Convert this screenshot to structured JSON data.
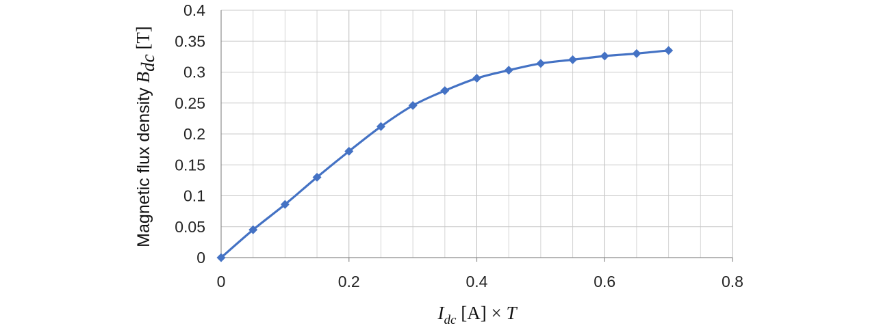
{
  "chart_data": {
    "type": "line",
    "x": [
      0,
      0.05,
      0.1,
      0.15,
      0.2,
      0.25,
      0.3,
      0.35,
      0.4,
      0.45,
      0.5,
      0.55,
      0.6,
      0.65,
      0.7
    ],
    "series": [
      {
        "values": [
          0,
          0.045,
          0.086,
          0.13,
          0.172,
          0.212,
          0.246,
          0.27,
          0.29,
          0.303,
          0.314,
          0.32,
          0.326,
          0.33,
          0.335
        ],
        "color": "#4472C4",
        "marker": "diamond"
      }
    ],
    "xlim": [
      0,
      0.8
    ],
    "ylim": [
      0,
      0.4
    ],
    "xticks": [
      "0",
      "0.2",
      "0.4",
      "0.6",
      "0.8"
    ],
    "yticks": [
      "0",
      "0.05",
      "0.1",
      "0.15",
      "0.2",
      "0.25",
      "0.3",
      "0.35",
      "0.4"
    ],
    "minor_x_gridlines_per_major": 4,
    "grid": true,
    "ylabel": {
      "text": "Magnetic flux density ",
      "symbol": "B",
      "subscript": "dc",
      "unit": " [T]"
    },
    "xlabel": {
      "symbol": "I",
      "subscript": "dc",
      "unit": " [A] × ",
      "factor": "T"
    }
  }
}
